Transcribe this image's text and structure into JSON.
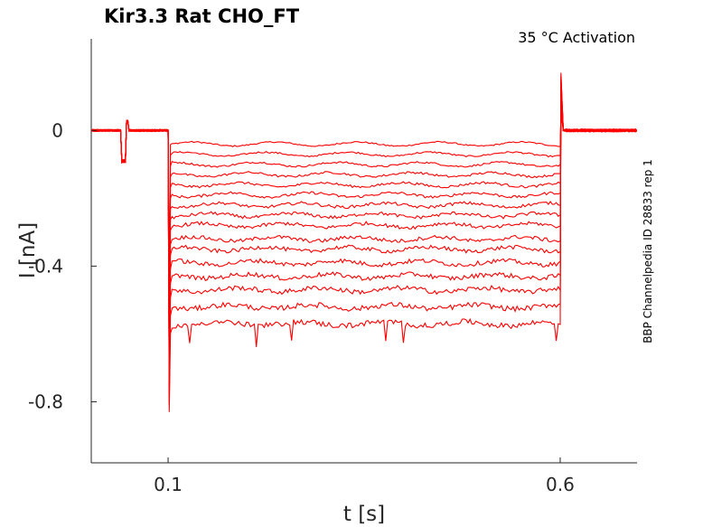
{
  "chart_data": {
    "type": "line",
    "title": "Kir3.3  Rat  CHO_FT",
    "annotation": "35 °C  Activation",
    "side_label": "BBP Channelpedia ID 28833 rep 1",
    "xlabel": "t [s]",
    "ylabel": "I [nA]",
    "xlim": [
      0.002,
      0.698
    ],
    "ylim": [
      -0.98,
      0.27
    ],
    "xticks": [
      0.1,
      0.6
    ],
    "xtick_labels": [
      "0.1",
      "0.6"
    ],
    "yticks": [
      0,
      -0.4,
      -0.8
    ],
    "ytick_labels": [
      "0",
      "-0.4",
      "-0.8"
    ],
    "grid": false,
    "color": "#ff0000",
    "protocol": {
      "holding_current": 0.0,
      "prepulse": {
        "start": 0.04,
        "end": 0.048,
        "value": -0.09
      },
      "step_start": 0.1,
      "step_end": 0.6,
      "onset_peak": -0.83,
      "offset_peak": 0.17
    },
    "series_steady_state": [
      -0.04,
      -0.07,
      -0.1,
      -0.13,
      -0.16,
      -0.19,
      -0.22,
      -0.25,
      -0.28,
      -0.32,
      -0.35,
      -0.39,
      -0.43,
      -0.47,
      -0.52,
      -0.57
    ]
  }
}
